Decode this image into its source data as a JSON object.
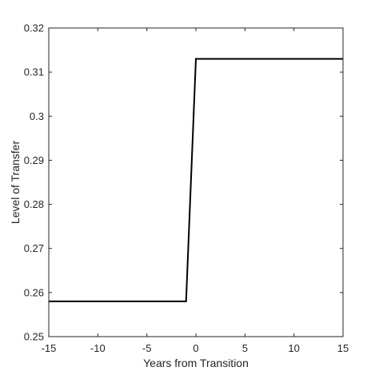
{
  "chart_data": {
    "type": "line",
    "title": "",
    "xlabel": "Years from Transition",
    "ylabel": "Level of Transfer",
    "xlim": [
      -15,
      15
    ],
    "ylim": [
      0.25,
      0.32
    ],
    "xticks": [
      -15,
      -10,
      -5,
      0,
      5,
      10,
      15
    ],
    "xtick_labels": [
      "-15",
      "-10",
      "-5",
      "0",
      "5",
      "10",
      "15"
    ],
    "yticks": [
      0.25,
      0.26,
      0.27,
      0.28,
      0.29,
      0.3,
      0.31,
      0.32
    ],
    "ytick_labels": [
      "0.25",
      "0.26",
      "0.27",
      "0.28",
      "0.29",
      "0.3",
      "0.31",
      "0.32"
    ],
    "grid": false,
    "legend": "none",
    "series": [
      {
        "color": "#000000",
        "x": [
          -15,
          -1,
          0,
          15
        ],
        "y": [
          0.258,
          0.258,
          0.313,
          0.313
        ]
      }
    ]
  }
}
